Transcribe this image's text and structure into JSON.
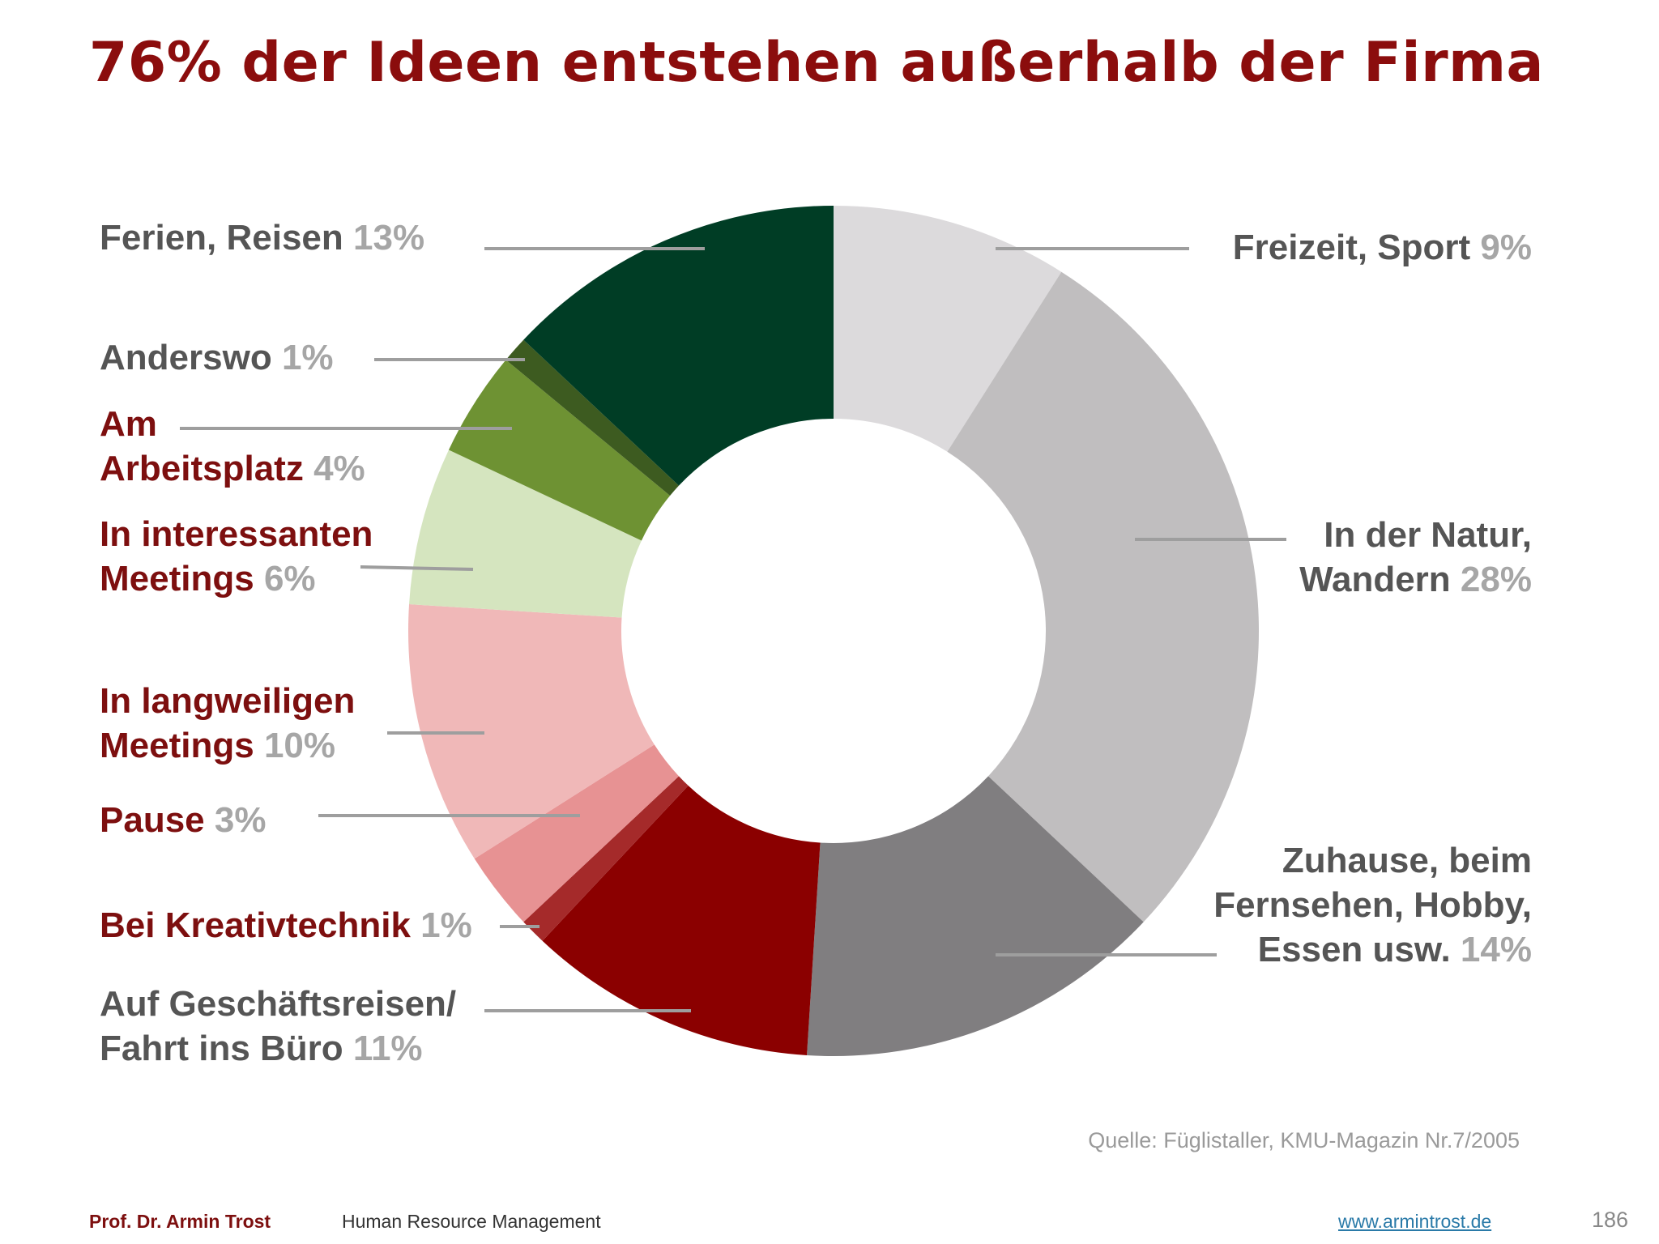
{
  "title": "76% der Ideen entstehen außerhalb der Firma",
  "chart_data": {
    "type": "pie",
    "title": "76% der Ideen entstehen außerhalb der Firma",
    "series": [
      {
        "label": "Freizeit, Sport",
        "value": 9,
        "pct_text": "9%",
        "color": "#dcdadc"
      },
      {
        "label": "In der Natur, Wandern",
        "value": 28,
        "pct_text": "28%",
        "color": "#c0bebf"
      },
      {
        "label": "Zuhause, beim Fernsehen, Hobby, Essen usw.",
        "value": 14,
        "pct_text": "14%",
        "color": "#807e80"
      },
      {
        "label": "Auf Geschäftsreisen/ Fahrt ins Büro",
        "value": 11,
        "pct_text": "11%",
        "color": "#8b0000"
      },
      {
        "label": "Bei Kreativtechnik",
        "value": 1,
        "pct_text": "1%",
        "color": "#a52a2a"
      },
      {
        "label": "Pause",
        "value": 3,
        "pct_text": "3%",
        "color": "#e79293"
      },
      {
        "label": "In langweiligen Meetings",
        "value": 10,
        "pct_text": "10%",
        "color": "#f0b8b8"
      },
      {
        "label": "In interessanten Meetings",
        "value": 6,
        "pct_text": "6%",
        "color": "#d5e5bf"
      },
      {
        "label": "Am Arbeitsplatz",
        "value": 4,
        "pct_text": "4%",
        "color": "#6e9233"
      },
      {
        "label": "Anderswo",
        "value": 1,
        "pct_text": "1%",
        "color": "#3d5b20"
      },
      {
        "label": "Ferien, Reisen",
        "value": 13,
        "pct_text": "13%",
        "color": "#003d25"
      }
    ],
    "legend": "callouts"
  },
  "labels": {
    "ferien": {
      "text": "Ferien, Reisen",
      "pct": "13%"
    },
    "anderswo": {
      "text": "Anderswo",
      "pct": "1%"
    },
    "arbeitsplatz": {
      "line1": "Am",
      "line2": "Arbeitsplatz",
      "pct": "4%"
    },
    "interessant": {
      "line1": "In interessanten",
      "line2": "Meetings",
      "pct": "6%"
    },
    "langweilig": {
      "line1": "In langweiligen",
      "line2": "Meetings",
      "pct": "10%"
    },
    "pause": {
      "text": "Pause",
      "pct": "3%"
    },
    "kreativ": {
      "text": "Bei Kreativtechnik",
      "pct": "1%"
    },
    "reisen": {
      "line1": "Auf Geschäftsreisen/",
      "line2": "Fahrt ins Büro",
      "pct": "11%"
    },
    "freizeit": {
      "text": "Freizeit, Sport",
      "pct": "9%"
    },
    "natur": {
      "line1": "In der Natur,",
      "line2": "Wandern",
      "pct": "28%"
    },
    "zuhause": {
      "line1": "Zuhause, beim",
      "line2": "Fernsehen, Hobby,",
      "line3": "Essen usw.",
      "pct": "14%"
    }
  },
  "source": "Quelle: Füglistaller, KMU-Magazin Nr.7/2005",
  "footer": {
    "author": "Prof. Dr. Armin Trost",
    "course": "Human Resource Management",
    "link": "www.armintrost.de",
    "page": "186"
  }
}
